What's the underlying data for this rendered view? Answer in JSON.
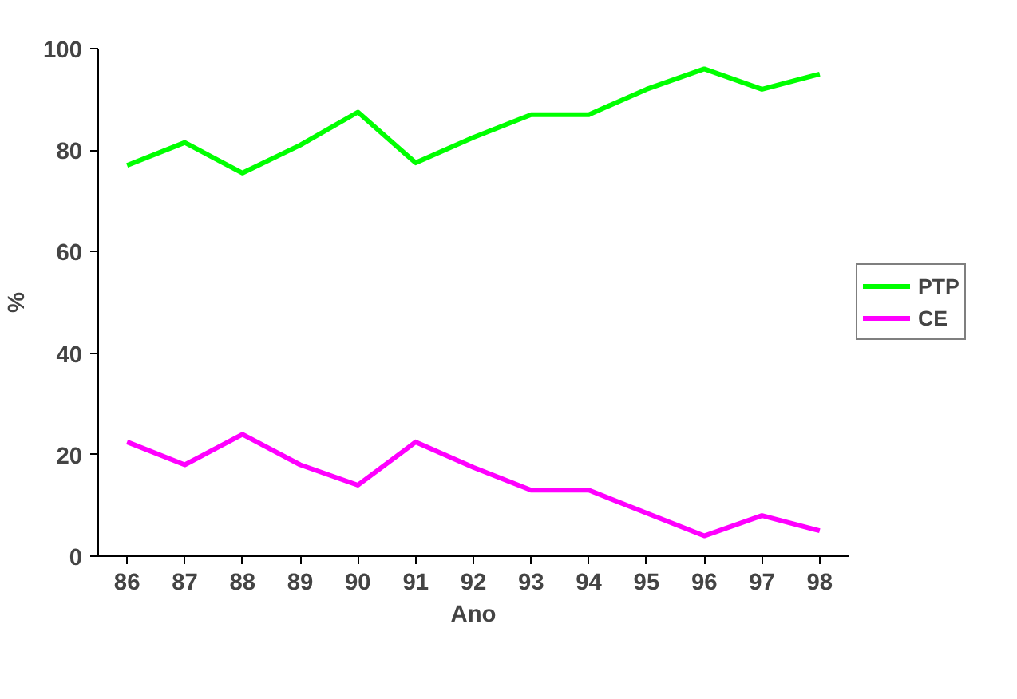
{
  "chart_data": {
    "type": "line",
    "xlabel": "Ano",
    "ylabel": "%",
    "categories": [
      "86",
      "87",
      "88",
      "89",
      "90",
      "91",
      "92",
      "93",
      "94",
      "95",
      "96",
      "97",
      "98"
    ],
    "series": [
      {
        "name": "PTP",
        "color": "#00ff00",
        "values": [
          77,
          81.5,
          75.5,
          81,
          87.5,
          77.5,
          82.5,
          87,
          87,
          92,
          96,
          92,
          95
        ]
      },
      {
        "name": "CE",
        "color": "#ff00ff",
        "values": [
          22.5,
          18,
          24,
          18,
          14,
          22.5,
          17.5,
          13,
          13,
          8.5,
          4,
          8,
          5
        ]
      }
    ],
    "ylim": [
      0,
      100
    ],
    "yticks": [
      0,
      20,
      40,
      60,
      80,
      100
    ],
    "grid": false,
    "legend": "right",
    "marker": "none"
  }
}
